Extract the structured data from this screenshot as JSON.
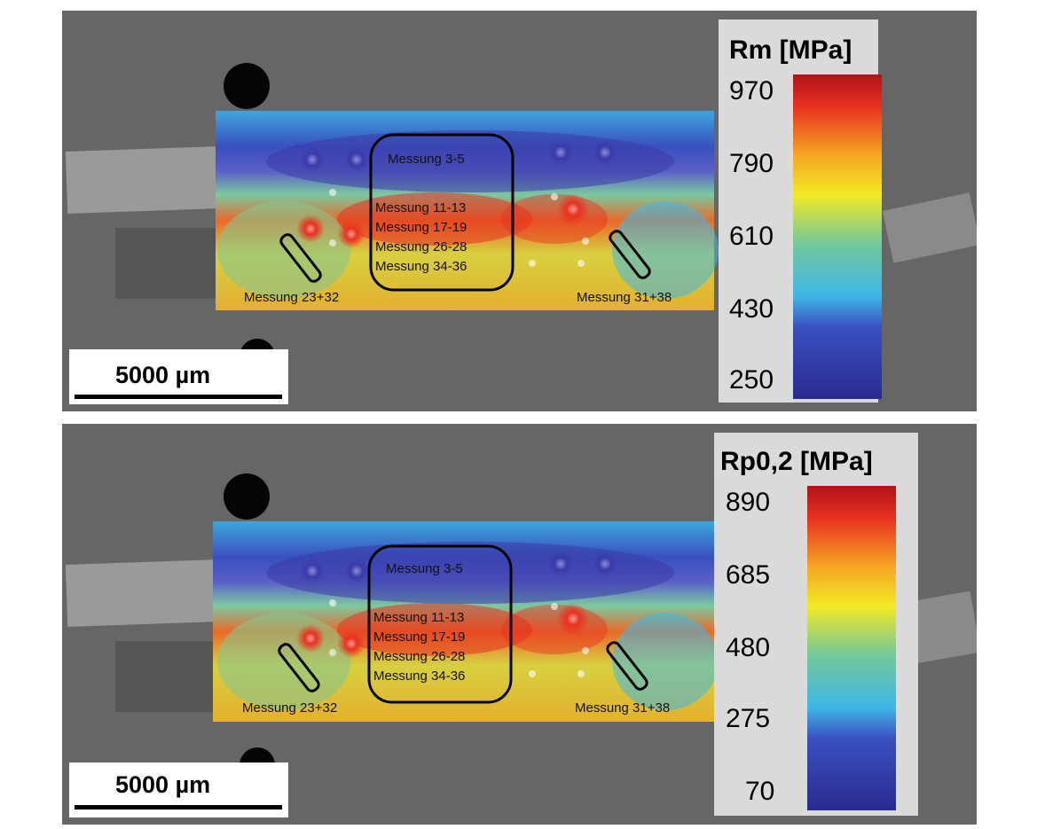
{
  "panels": [
    {
      "id": "top",
      "regions": [
        "Messung 3-5",
        "Messung 11-13",
        "Messung 17-19",
        "Messung 26-28",
        "Messung 34-36"
      ],
      "left_label": "Messung 23+32",
      "right_label": "Messung 31+38",
      "scale_bar": "5000 µm",
      "legend": {
        "title": "Rm [MPa]",
        "ticks": [
          "970",
          "790",
          "610",
          "430",
          "250"
        ]
      }
    },
    {
      "id": "bottom",
      "regions": [
        "Messung 3-5",
        "Messung 11-13",
        "Messung 17-19",
        "Messung 26-28",
        "Messung 34-36"
      ],
      "left_label": "Messung 23+32",
      "right_label": "Messung 31+38",
      "scale_bar": "5000 µm",
      "legend": {
        "title": "Rp0,2 [MPa]",
        "ticks": [
          "890",
          "685",
          "480",
          "275",
          "70"
        ]
      }
    }
  ],
  "colors": {
    "background_gray": "#6a6a6a",
    "colormap": [
      "#2a2a8f",
      "#3a4fc0",
      "#3fb8e6",
      "#76c89a",
      "#f2ea26",
      "#f5a623",
      "#e8311f",
      "#b0121a"
    ]
  }
}
